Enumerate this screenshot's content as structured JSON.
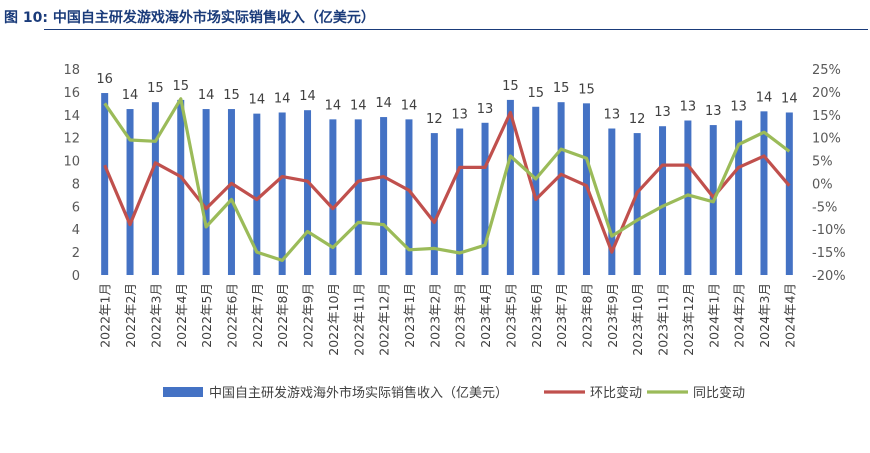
{
  "figure": {
    "title": "图 10:  中国自主研发游戏海外市场实际销售收入（亿美元）"
  },
  "colors": {
    "bar": "#4472c4",
    "mom": "#c0504d",
    "yoy": "#9bbb59",
    "title": "#1a3b7a"
  },
  "chart_data": {
    "type": "bar+line",
    "categories": [
      "2022年1月",
      "2022年2月",
      "2022年3月",
      "2022年4月",
      "2022年5月",
      "2022年6月",
      "2022年7月",
      "2022年8月",
      "2022年9月",
      "2022年10月",
      "2022年11月",
      "2022年12月",
      "2023年1月",
      "2023年2月",
      "2023年3月",
      "2023年4月",
      "2023年5月",
      "2023年6月",
      "2023年7月",
      "2023年8月",
      "2023年9月",
      "2023年10月",
      "2023年11月",
      "2023年12月",
      "2024年1月",
      "2024年2月",
      "2024年3月",
      "2024年4月"
    ],
    "series": [
      {
        "name": "中国自主研发游戏海外市场实际销售收入（亿美元）",
        "type": "bar",
        "axis": "left",
        "values": [
          15.9,
          14.5,
          15.1,
          15.3,
          14.5,
          14.5,
          14.1,
          14.2,
          14.4,
          13.6,
          13.6,
          13.8,
          13.6,
          12.4,
          12.8,
          13.3,
          15.3,
          14.7,
          15.1,
          15.0,
          12.8,
          12.4,
          13.0,
          13.5,
          13.1,
          13.5,
          14.3,
          14.2
        ],
        "labels": [
          "16",
          "14",
          "15",
          "15",
          "14",
          "15",
          "14",
          "14",
          "14",
          "14",
          "14",
          "14",
          "14",
          "12",
          "13",
          "13",
          "15",
          "15",
          "15",
          "15",
          "13",
          "12",
          "13",
          "13",
          "13",
          "13",
          "14",
          "14"
        ]
      },
      {
        "name": "环比变动",
        "type": "line",
        "axis": "right",
        "values": [
          4,
          -9,
          4.5,
          1.5,
          -5.5,
          0,
          -3.5,
          1.5,
          0.5,
          -5.5,
          0.5,
          1.5,
          -1.5,
          -8.5,
          3.5,
          3.5,
          15.5,
          -3.5,
          2,
          -0.5,
          -15,
          -2,
          4,
          4,
          -3,
          3.5,
          6,
          -0.5
        ]
      },
      {
        "name": "同比变动",
        "type": "line",
        "axis": "right",
        "values": [
          17.5,
          9.5,
          9.2,
          18.5,
          -9.5,
          -3.5,
          -15,
          -16.8,
          -10.5,
          -14,
          -8.5,
          -9,
          -14.5,
          -14.2,
          -15.2,
          -13.5,
          6,
          1,
          7.5,
          5.5,
          -11.5,
          -8,
          -5,
          -2.5,
          -4,
          8.5,
          11.2,
          7
        ]
      }
    ],
    "y_left": {
      "min": 0,
      "max": 18,
      "ticks": [
        "0",
        "2",
        "4",
        "6",
        "8",
        "10",
        "12",
        "14",
        "16",
        "18"
      ]
    },
    "y_right": {
      "min": -20,
      "max": 25,
      "ticks": [
        "-20%",
        "-15%",
        "-10%",
        "-5%",
        "0%",
        "5%",
        "10%",
        "15%",
        "20%",
        "25%"
      ]
    },
    "legend_position": "bottom",
    "grid": false
  }
}
